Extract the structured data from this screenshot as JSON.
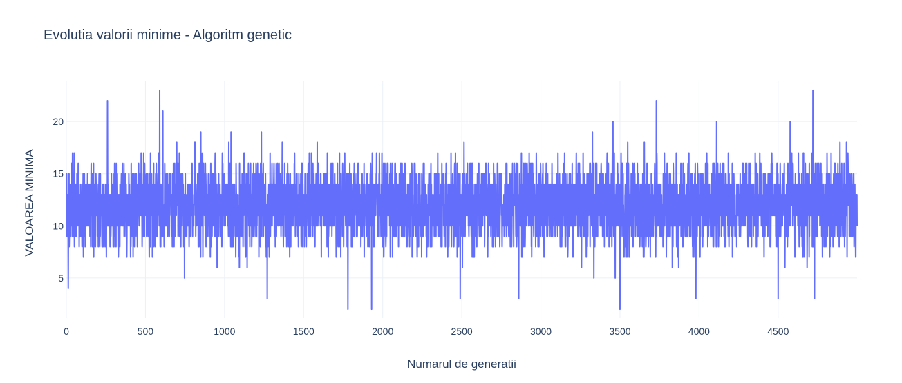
{
  "chart_data": {
    "type": "line",
    "title": "Evolutia valorii minime - Algoritm genetic",
    "xlabel": "Numarul de generatii",
    "ylabel": "VALOAREA MINIMA",
    "xlim": [
      0,
      4999
    ],
    "ylim": [
      1.15,
      23.85
    ],
    "x_ticks": [
      0,
      500,
      1000,
      1500,
      2000,
      2500,
      3000,
      3500,
      4000,
      4500
    ],
    "y_ticks": [
      5,
      10,
      15,
      20
    ],
    "grid": true,
    "legend": "none",
    "series": [
      {
        "color": "#636efa",
        "x_start": 0,
        "x_end": 4999,
        "count": 5000,
        "typical_range": [
          8,
          17
        ],
        "mean": 12,
        "notable_points": [
          {
            "x": 12,
            "y": 4
          },
          {
            "x": 260,
            "y": 22
          },
          {
            "x": 590,
            "y": 23
          },
          {
            "x": 610,
            "y": 21
          },
          {
            "x": 1270,
            "y": 3
          },
          {
            "x": 1780,
            "y": 2
          },
          {
            "x": 1930,
            "y": 2
          },
          {
            "x": 2490,
            "y": 3
          },
          {
            "x": 2860,
            "y": 3
          },
          {
            "x": 3500,
            "y": 2
          },
          {
            "x": 3730,
            "y": 22
          },
          {
            "x": 3980,
            "y": 3
          },
          {
            "x": 4500,
            "y": 3
          },
          {
            "x": 4720,
            "y": 23
          },
          {
            "x": 4730,
            "y": 3
          }
        ]
      }
    ]
  }
}
